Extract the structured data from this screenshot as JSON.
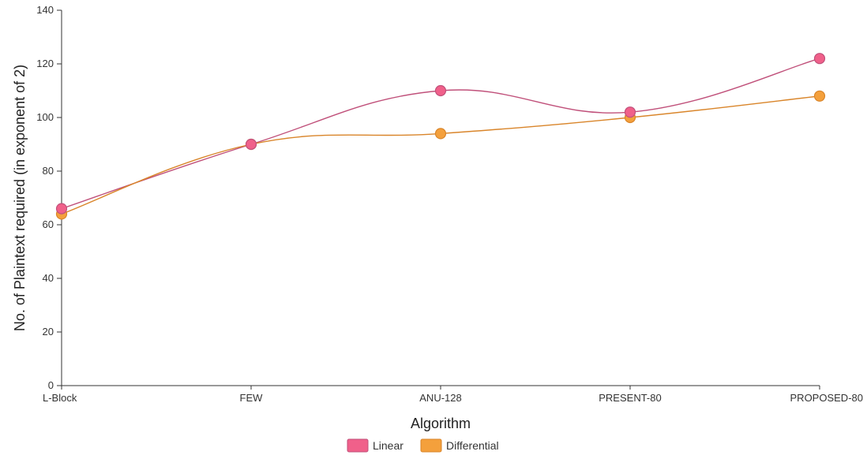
{
  "chart_data": {
    "type": "line",
    "title": "",
    "xlabel": "Algorithm",
    "ylabel": "No. of Plaintext required (in exponent of 2)",
    "categories": [
      "L-Block",
      "FEW",
      "ANU-128",
      "PRESENT-80",
      "PROPOSED-80"
    ],
    "ylim": [
      0,
      140
    ],
    "yticks": [
      0,
      20,
      40,
      60,
      80,
      100,
      120,
      140
    ],
    "grid": false,
    "legend_position": "bottom-center",
    "series": [
      {
        "name": "Linear",
        "values": [
          66,
          90,
          110,
          102,
          122
        ],
        "color": "#f0608a"
      },
      {
        "name": "Differential",
        "values": [
          64,
          90,
          94,
          100,
          108
        ],
        "color": "#f4a03c"
      }
    ]
  }
}
